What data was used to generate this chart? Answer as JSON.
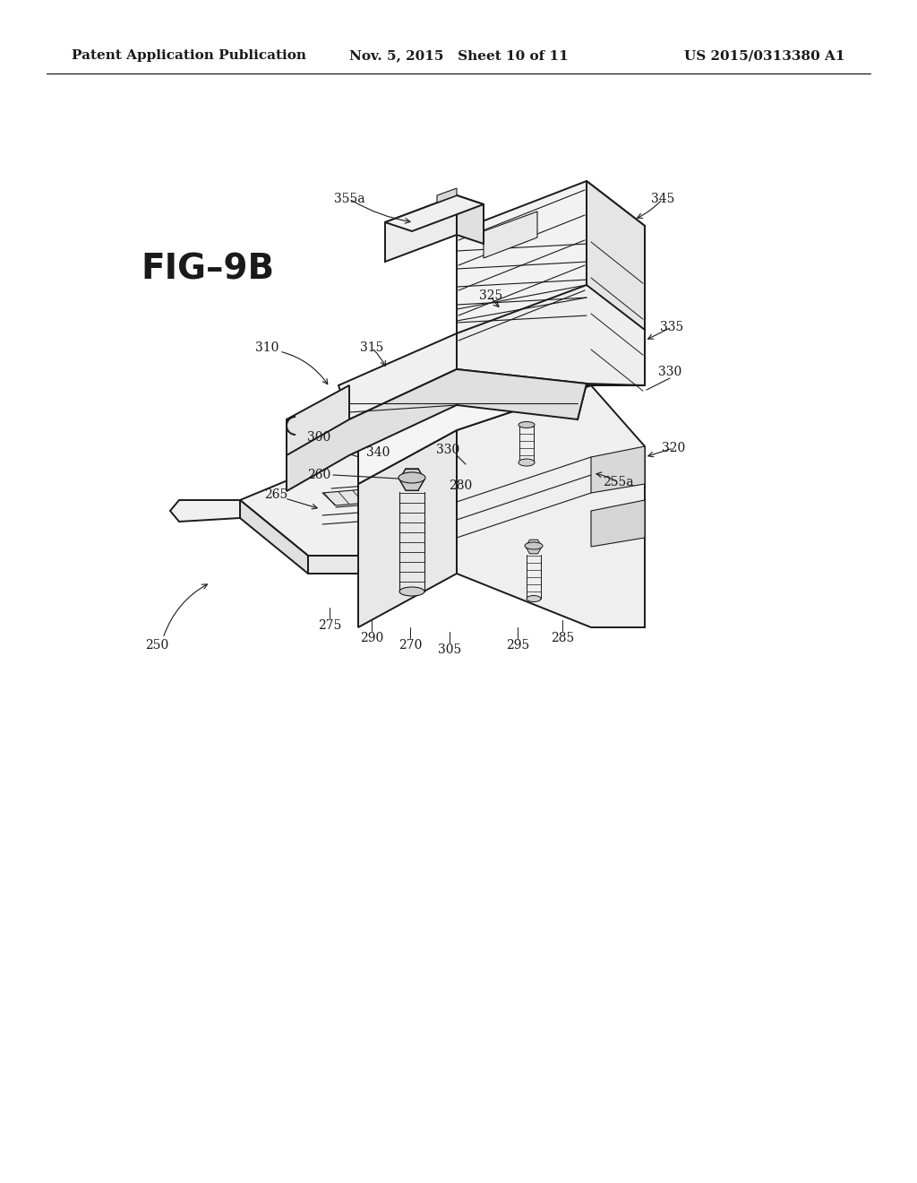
{
  "background_color": "#ffffff",
  "line_color": "#1a1a1a",
  "header_left": "Patent Application Publication",
  "header_center": "Nov. 5, 2015   Sheet 10 of 11",
  "header_right": "US 2015/0313380 A1",
  "fig_label": "FIG–9B",
  "header_fontsize": 11,
  "fig_label_fontsize": 28,
  "label_fontsize": 10
}
